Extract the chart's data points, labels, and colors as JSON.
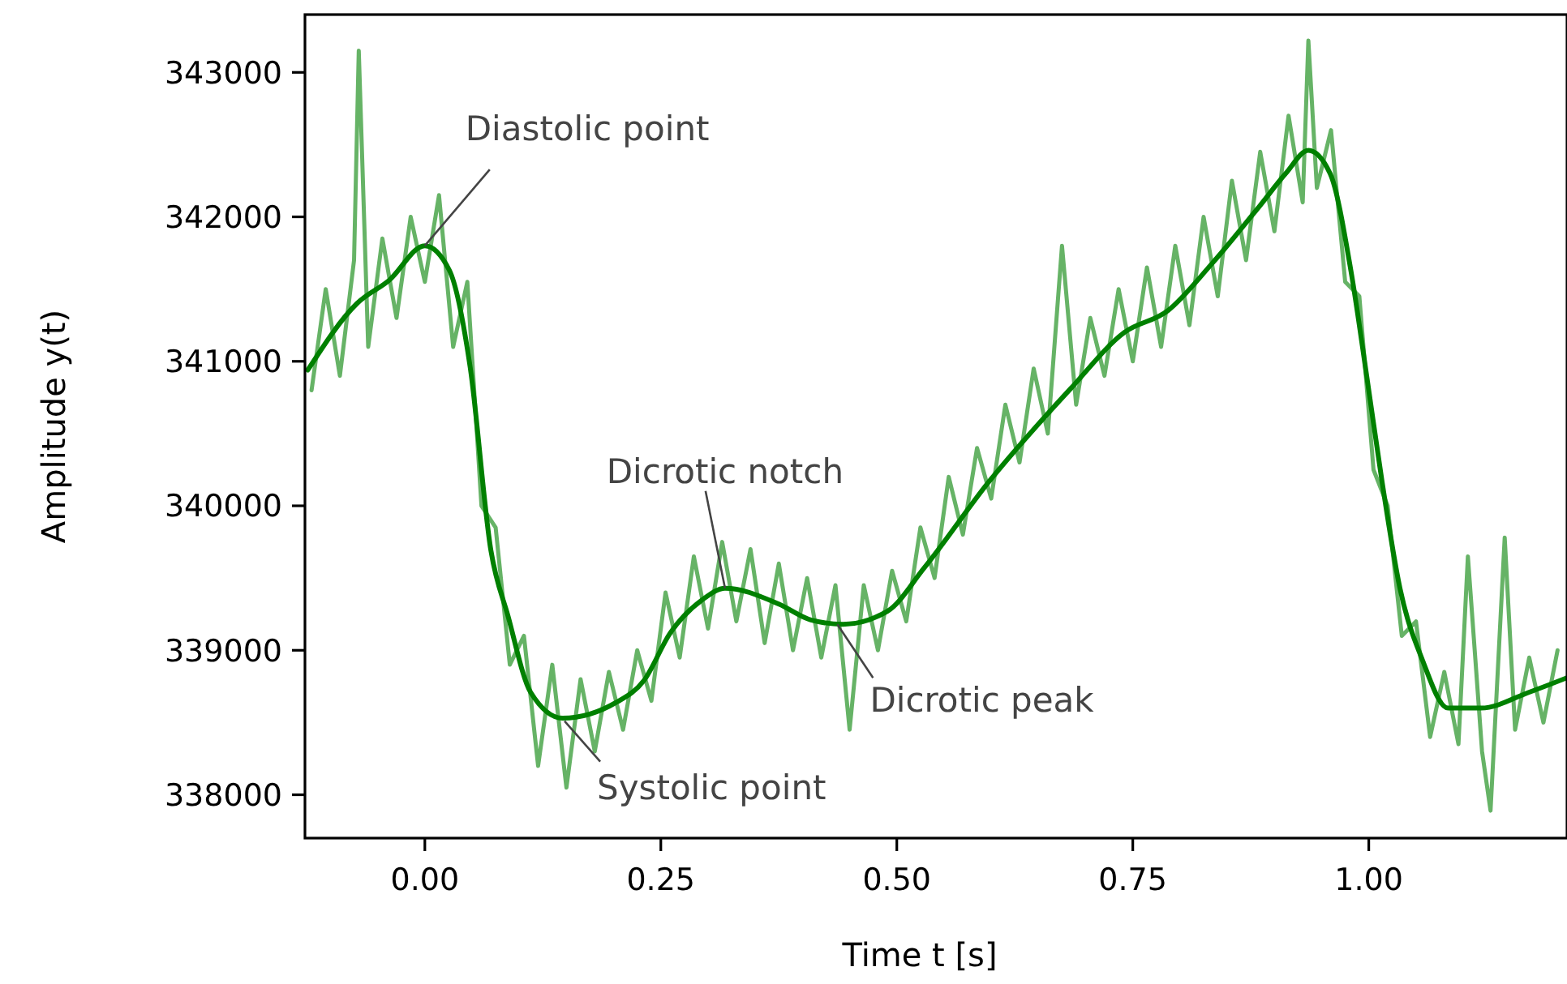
{
  "chart_data": {
    "type": "line",
    "xlabel": "Time t [s]",
    "ylabel": "Amplitude y(t)",
    "xlim": [
      -0.127,
      1.21
    ],
    "ylim": [
      337700,
      343400
    ],
    "xticks": [
      {
        "value": 0,
        "label": "0.00"
      },
      {
        "value": 0.25,
        "label": "0.25"
      },
      {
        "value": 0.5,
        "label": "0.50"
      },
      {
        "value": 0.75,
        "label": "0.75"
      },
      {
        "value": 1,
        "label": "1.00"
      }
    ],
    "yticks": [
      338000,
      339000,
      340000,
      341000,
      342000,
      343000
    ],
    "grid": false,
    "marker": "none",
    "line_style": "solid",
    "series": [
      {
        "color": "#66b366",
        "x": [
          -0.12,
          -0.105,
          -0.09,
          -0.075,
          -0.07,
          -0.06,
          -0.045,
          -0.03,
          -0.015,
          0,
          0.015,
          0.03,
          0.045,
          0.06,
          0.075,
          0.09,
          0.105,
          0.12,
          0.135,
          0.15,
          0.165,
          0.18,
          0.195,
          0.21,
          0.225,
          0.24,
          0.255,
          0.27,
          0.285,
          0.3,
          0.315,
          0.33,
          0.345,
          0.36,
          0.375,
          0.39,
          0.405,
          0.42,
          0.435,
          0.45,
          0.465,
          0.48,
          0.495,
          0.51,
          0.525,
          0.54,
          0.555,
          0.57,
          0.585,
          0.6,
          0.615,
          0.63,
          0.645,
          0.66,
          0.675,
          0.69,
          0.705,
          0.72,
          0.735,
          0.75,
          0.765,
          0.78,
          0.795,
          0.81,
          0.825,
          0.84,
          0.855,
          0.87,
          0.885,
          0.9,
          0.915,
          0.93,
          0.936,
          0.945,
          0.96,
          0.975,
          0.99,
          1.005,
          1.02,
          1.035,
          1.05,
          1.065,
          1.08,
          1.095,
          1.105,
          1.12,
          1.129,
          1.144,
          1.155,
          1.17,
          1.185,
          1.2
        ],
        "values": [
          340800,
          341500,
          340900,
          341700,
          343150,
          341100,
          341850,
          341300,
          342000,
          341550,
          342150,
          341100,
          341550,
          340000,
          339850,
          338900,
          339100,
          338200,
          338900,
          338050,
          338800,
          338300,
          338850,
          338450,
          339000,
          338650,
          339400,
          338950,
          339650,
          339150,
          339750,
          339200,
          339700,
          339050,
          339600,
          339000,
          339500,
          338950,
          339450,
          338450,
          339450,
          339000,
          339550,
          339200,
          339850,
          339500,
          340200,
          339800,
          340400,
          340050,
          340700,
          340300,
          340950,
          340500,
          341800,
          340700,
          341300,
          340900,
          341500,
          341000,
          341650,
          341100,
          341800,
          341250,
          342000,
          341450,
          342250,
          341700,
          342450,
          341900,
          342700,
          342100,
          343220,
          342200,
          342600,
          341550,
          341450,
          340250,
          340000,
          339100,
          339200,
          338400,
          338850,
          338350,
          339650,
          338300,
          337890,
          339780,
          338450,
          338950,
          338500,
          339000
        ]
      },
      {
        "color": "#008000",
        "x": [
          -0.124,
          -0.072,
          -0.038,
          0,
          0.026,
          0.048,
          0.07,
          0.088,
          0.112,
          0.146,
          0.203,
          0.232,
          0.26,
          0.294,
          0.318,
          0.375,
          0.409,
          0.443,
          0.49,
          0.529,
          0.598,
          0.684,
          0.741,
          0.787,
          0.833,
          0.885,
          0.912,
          0.936,
          0.959,
          0.981,
          0.998,
          1.014,
          1.033,
          1.057,
          1.084,
          1.119,
          1.17,
          1.21
        ],
        "values": [
          340940,
          341400,
          341560,
          341800,
          341630,
          340960,
          339690,
          339240,
          338710,
          338530,
          338640,
          338790,
          339120,
          339350,
          339430,
          339320,
          339210,
          339180,
          339270,
          339570,
          340170,
          340810,
          341200,
          341350,
          341670,
          342080,
          342300,
          342460,
          342300,
          341630,
          340890,
          340170,
          339430,
          338930,
          338600,
          338600,
          338710,
          338810
        ]
      }
    ],
    "annotations": [
      {
        "text": "Diastolic point",
        "x": 0,
        "y": 341800
      },
      {
        "text": "Systolic point",
        "x": 0.148,
        "y": 338510
      },
      {
        "text": "Dicrotic notch",
        "x": 0.318,
        "y": 339430
      },
      {
        "text": "Dicrotic peak",
        "x": 0.437,
        "y": 339180
      }
    ]
  }
}
